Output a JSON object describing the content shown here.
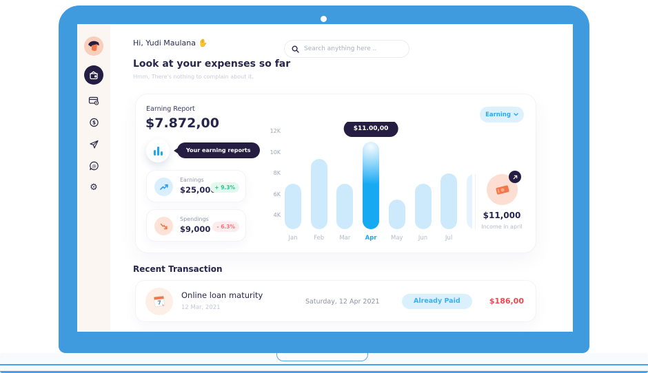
{
  "header": {
    "greeting": "Hi, Yudi Maulana",
    "greeting_emoji": "✋",
    "search_placeholder": "Search anything here ..",
    "title": "Look at your expenses so far",
    "subtitle": "Hmm, There's nothing to complain about it."
  },
  "sidebar": {
    "items": [
      "profile-avatar",
      "dashboard",
      "cards",
      "balance",
      "send",
      "messages",
      "settings"
    ]
  },
  "earning_card": {
    "label": "Earning Report",
    "total": "$7.872,00",
    "reports_tooltip": "Your earning reports",
    "filter_label": "Earning",
    "stats": [
      {
        "label": "Earnings",
        "value": "$25,000",
        "delta": "+ 9.3%",
        "direction": "up"
      },
      {
        "label": "Spendings",
        "value": "$9,000",
        "delta": "- 6.3%",
        "direction": "down"
      }
    ],
    "income": {
      "value": "$11,000",
      "caption": "Income in april"
    }
  },
  "chart_data": {
    "type": "bar",
    "title": "Earning Report",
    "categories": [
      "Jan",
      "Feb",
      "Mar",
      "Apr",
      "May",
      "Jun",
      "Jul"
    ],
    "values": [
      7000,
      9400,
      7000,
      11000,
      5500,
      7000,
      8000
    ],
    "partial_next_value": 8000,
    "y_ticks": [
      "12K",
      "10K",
      "8K",
      "6K",
      "4K"
    ],
    "ylim": [
      2700,
      12500
    ],
    "grid": false,
    "legend": false,
    "tooltip": {
      "index": 3,
      "label": "$11.00,00"
    },
    "bar_color": "#cdeafc",
    "highlight_color": "#18a9f3"
  },
  "transactions": {
    "heading": "Recent Transaction",
    "rows": [
      {
        "title": "Online loan maturity",
        "date": "12 Mar, 2021",
        "full_date": "Saturday, 12 Apr 2021",
        "status": "Already Paid",
        "amount": "$186,00"
      }
    ]
  },
  "colors": {
    "laptop_blue": "#3f9bde",
    "navy": "#261d43",
    "accent_blue": "#18a9f3",
    "bar_light": "#cdeafc",
    "green": "#2bc48a",
    "red": "#f5464d",
    "orange": "#f2784b",
    "peach": "#fcdfd2"
  }
}
